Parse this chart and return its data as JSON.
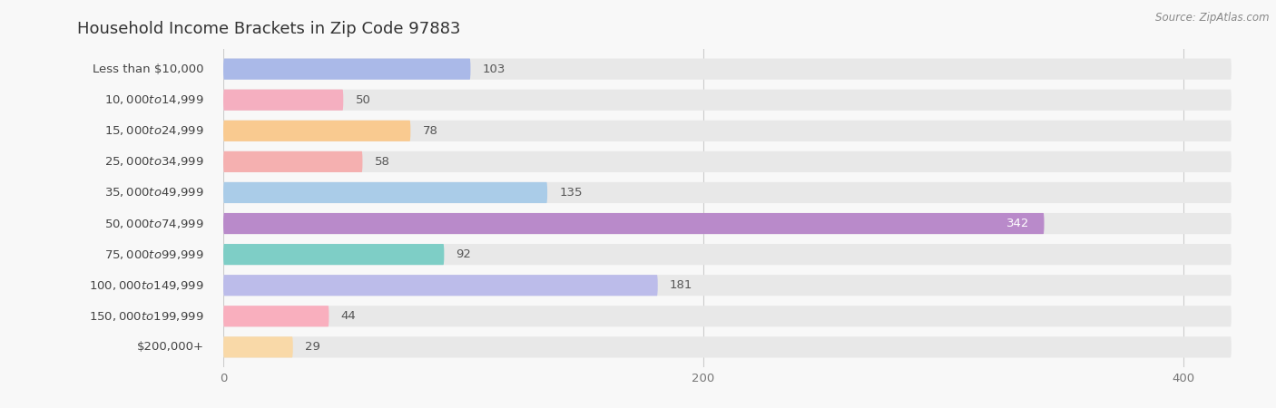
{
  "title": "Household Income Brackets in Zip Code 97883",
  "source": "Source: ZipAtlas.com",
  "categories": [
    "Less than $10,000",
    "$10,000 to $14,999",
    "$15,000 to $24,999",
    "$25,000 to $34,999",
    "$35,000 to $49,999",
    "$50,000 to $74,999",
    "$75,000 to $99,999",
    "$100,000 to $149,999",
    "$150,000 to $199,999",
    "$200,000+"
  ],
  "values": [
    103,
    50,
    78,
    58,
    135,
    342,
    92,
    181,
    44,
    29
  ],
  "bar_colors": [
    "#aab9e8",
    "#f5afc0",
    "#f9ca90",
    "#f5b0b0",
    "#aacce8",
    "#b98aca",
    "#7ecec6",
    "#bcbcea",
    "#f9afbe",
    "#f9d9a8"
  ],
  "background_color": "#f8f8f8",
  "bar_bg_color": "#e8e8e8",
  "xlim": [
    0,
    420
  ],
  "xticks": [
    0,
    200,
    400
  ],
  "title_fontsize": 13,
  "label_fontsize": 9.5,
  "value_fontsize": 9.5,
  "bar_height": 0.68,
  "bar_rounding": 6,
  "value_342_color": "white"
}
